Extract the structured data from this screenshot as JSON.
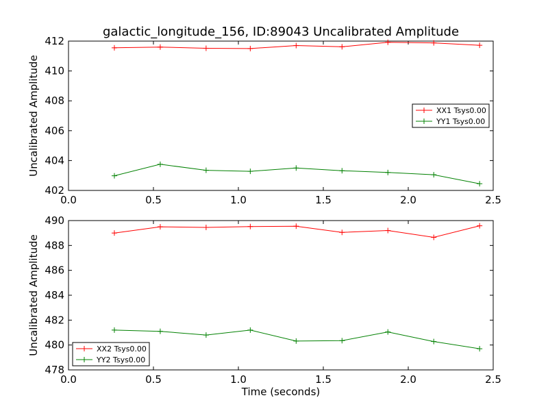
{
  "chart_data": [
    {
      "type": "line",
      "title": "galactic_longitude_156, ID:89043 Uncalibrated Amplitude",
      "xlabel": "",
      "ylabel": "Uncalibrated Amplitude",
      "xlim": [
        0.0,
        2.5
      ],
      "ylim": [
        402,
        412
      ],
      "xticks": [
        "0.0",
        "0.5",
        "1.0",
        "1.5",
        "2.0",
        "2.5"
      ],
      "yticks": [
        "402",
        "404",
        "406",
        "408",
        "410",
        "412"
      ],
      "legend_position": "center-right",
      "x": [
        0.27,
        0.54,
        0.81,
        1.07,
        1.34,
        1.61,
        1.88,
        2.15,
        2.42
      ],
      "series": [
        {
          "name": "XX1 Tsys0.00",
          "color": "#ff0000",
          "values": [
            411.55,
            411.6,
            411.52,
            411.5,
            411.7,
            411.62,
            411.92,
            411.88,
            411.72
          ]
        },
        {
          "name": "YY1 Tsys0.00",
          "color": "#008000",
          "values": [
            402.98,
            403.75,
            403.35,
            403.28,
            403.5,
            403.32,
            403.2,
            403.05,
            402.45
          ]
        }
      ]
    },
    {
      "type": "line",
      "title": "",
      "xlabel": "Time (seconds)",
      "ylabel": "Uncalibrated Amplitude",
      "xlim": [
        0.0,
        2.5
      ],
      "ylim": [
        478,
        490
      ],
      "xticks": [
        "0.0",
        "0.5",
        "1.0",
        "1.5",
        "2.0",
        "2.5"
      ],
      "yticks": [
        "478",
        "480",
        "482",
        "484",
        "486",
        "488",
        "490"
      ],
      "legend_position": "bottom-left",
      "x": [
        0.27,
        0.54,
        0.81,
        1.07,
        1.34,
        1.61,
        1.88,
        2.15,
        2.42
      ],
      "series": [
        {
          "name": "XX2 Tsys0.00",
          "color": "#ff0000",
          "values": [
            489.0,
            489.5,
            489.45,
            489.52,
            489.55,
            489.05,
            489.2,
            488.65,
            489.58
          ]
        },
        {
          "name": "YY2 Tsys0.00",
          "color": "#008000",
          "values": [
            481.2,
            481.1,
            480.8,
            481.2,
            480.32,
            480.35,
            481.05,
            480.28,
            479.7
          ]
        }
      ]
    }
  ]
}
